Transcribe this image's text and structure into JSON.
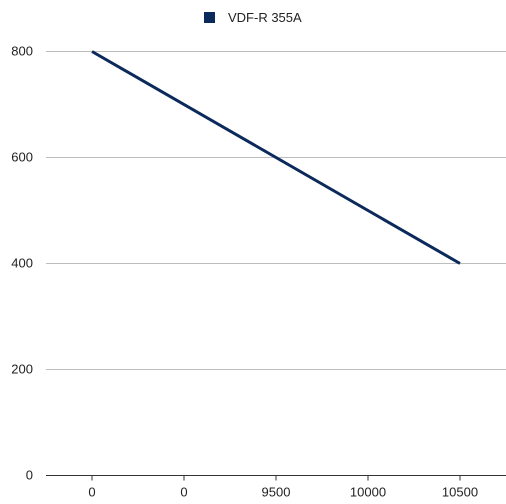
{
  "chart_data": {
    "type": "line",
    "categories": [
      "0",
      "0",
      "9500",
      "10000",
      "10500"
    ],
    "series": [
      {
        "name": "VDF-R 355A",
        "values": [
          800,
          null,
          null,
          null,
          400
        ],
        "color": "#0b2a5b"
      }
    ],
    "ylim": [
      0,
      800
    ],
    "yticks": [
      0,
      200,
      400,
      600,
      800
    ],
    "grid": true,
    "legend": "top-center"
  }
}
